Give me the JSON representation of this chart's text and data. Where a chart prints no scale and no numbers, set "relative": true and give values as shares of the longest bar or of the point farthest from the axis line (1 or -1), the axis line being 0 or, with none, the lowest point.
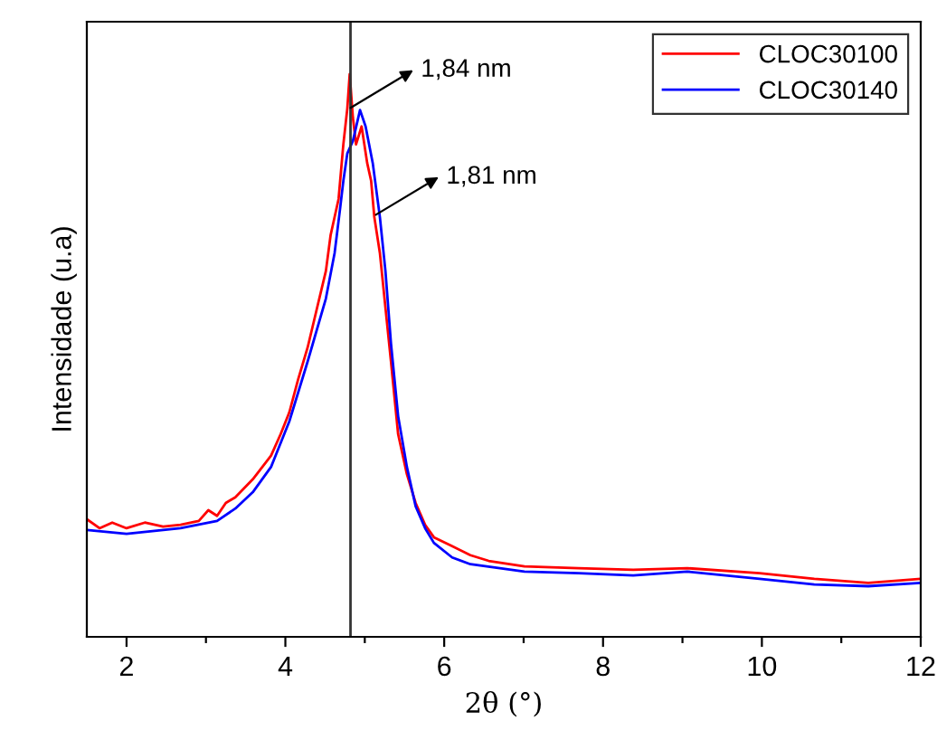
{
  "chart_data": {
    "type": "line",
    "relative": true,
    "xlabel": "2θ (°)",
    "ylabel": "Intensidade (u.a)",
    "xlim": [
      1.5,
      12
    ],
    "xticks": [
      2,
      {
        "value": 3,
        "label": null
      },
      4,
      {
        "value": 5,
        "label": null
      },
      6,
      {
        "value": 7,
        "label": null
      },
      8,
      {
        "value": 9,
        "label": null
      },
      10,
      {
        "value": 11,
        "label": null
      },
      12
    ],
    "tick_labels": "x",
    "grid": false,
    "legend": "top right",
    "marker": "none",
    "line_style": "solid",
    "ref_lines": [
      {
        "axis": "x",
        "value": 4.82,
        "color": "#333333"
      }
    ],
    "annotations": [
      {
        "text": "1,84 nm",
        "x": 4.82,
        "y": 0.94
      },
      {
        "text": "1,81 nm",
        "x": 5.14,
        "y": 0.75
      }
    ],
    "series": [
      {
        "name": "CLOC30100",
        "color": "#ff0000",
        "x": [
          1.5,
          1.66,
          1.82,
          2.0,
          2.23,
          2.46,
          2.68,
          2.91,
          3.03,
          3.14,
          3.25,
          3.37,
          3.48,
          3.59,
          3.82,
          3.94,
          4.05,
          4.16,
          4.28,
          4.39,
          4.51,
          4.57,
          4.67,
          4.73,
          4.78,
          4.81,
          4.85,
          4.89,
          4.96,
          5.03,
          5.08,
          5.12,
          5.19,
          5.26,
          5.33,
          5.42,
          5.53,
          5.64,
          5.76,
          5.87,
          6.1,
          6.33,
          6.56,
          7.01,
          7.69,
          8.38,
          9.06,
          9.97,
          10.66,
          11.34,
          12
        ],
        "values": [
          0.209,
          0.193,
          0.203,
          0.193,
          0.203,
          0.196,
          0.199,
          0.206,
          0.225,
          0.215,
          0.238,
          0.248,
          0.264,
          0.28,
          0.322,
          0.36,
          0.399,
          0.457,
          0.514,
          0.579,
          0.65,
          0.714,
          0.778,
          0.875,
          0.939,
          1,
          0.923,
          0.875,
          0.907,
          0.842,
          0.81,
          0.746,
          0.682,
          0.585,
          0.489,
          0.36,
          0.289,
          0.238,
          0.199,
          0.177,
          0.161,
          0.145,
          0.135,
          0.125,
          0.122,
          0.119,
          0.122,
          0.113,
          0.103,
          0.096,
          0.103
        ]
      },
      {
        "name": "CLOC30140",
        "color": "#0000ff",
        "x": [
          1.5,
          2.0,
          2.68,
          3.14,
          3.37,
          3.59,
          3.82,
          4.05,
          4.28,
          4.51,
          4.62,
          4.69,
          4.73,
          4.78,
          4.85,
          4.94,
          5.01,
          5.1,
          5.19,
          5.26,
          5.33,
          5.42,
          5.53,
          5.64,
          5.76,
          5.87,
          6.1,
          6.33,
          7.01,
          7.69,
          8.38,
          9.06,
          9.97,
          10.66,
          11.34,
          12
        ],
        "values": [
          0.19,
          0.183,
          0.193,
          0.206,
          0.228,
          0.257,
          0.302,
          0.383,
          0.489,
          0.601,
          0.682,
          0.762,
          0.81,
          0.859,
          0.881,
          0.936,
          0.907,
          0.842,
          0.746,
          0.65,
          0.521,
          0.392,
          0.302,
          0.232,
          0.193,
          0.167,
          0.141,
          0.129,
          0.116,
          0.113,
          0.109,
          0.116,
          0.103,
          0.093,
          0.09,
          0.096
        ]
      }
    ]
  }
}
